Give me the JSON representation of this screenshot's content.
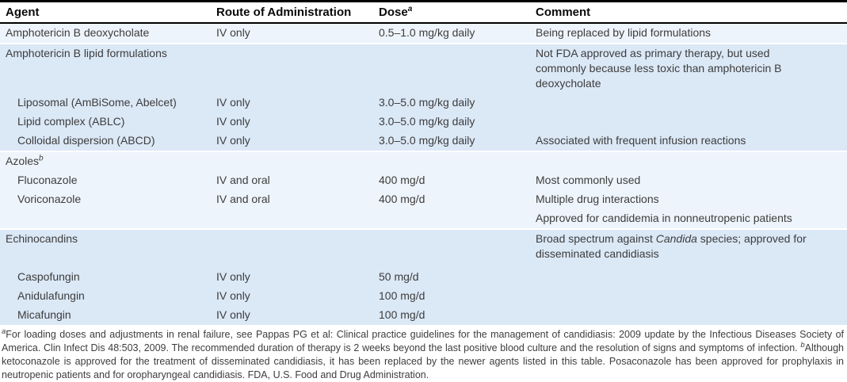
{
  "colors": {
    "band_light": "#eef4fb",
    "band_dark": "#dbe8f6",
    "header_rule": "#000000",
    "body_text": "#3d3d3d"
  },
  "table": {
    "columns": [
      "Agent",
      "Route of Administration",
      "Dose",
      "Comment"
    ],
    "dose_superscript": "a",
    "groups": [
      {
        "rows": [
          {
            "agent": "Amphotericin B deoxycholate",
            "route": "IV only",
            "dose": "0.5–1.0 mg/kg daily",
            "comment": "Being replaced by lipid formulations"
          }
        ]
      },
      {
        "rows": [
          {
            "agent": "Amphotericin B lipid formulations",
            "comment": "Not FDA approved as primary therapy, but used commonly because less toxic than amphotericin B deoxycholate"
          },
          {
            "agent": "Liposomal (AmBiSome, Abelcet)",
            "route": "IV only",
            "dose": "3.0–5.0 mg/kg daily"
          },
          {
            "agent": "Lipid complex (ABLC)",
            "route": "IV only",
            "dose": "3.0–5.0 mg/kg daily"
          },
          {
            "agent": "Colloidal dispersion (ABCD)",
            "route": "IV only",
            "dose": "3.0–5.0 mg/kg daily",
            "comment": "Associated with frequent infusion reactions"
          }
        ]
      },
      {
        "rows": [
          {
            "agent": "Azoles",
            "agent_superscript": "b"
          },
          {
            "agent": "Fluconazole",
            "route": "IV and oral",
            "dose": "400 mg/d",
            "comment": "Most commonly used"
          },
          {
            "agent": "Voriconazole",
            "route": "IV and oral",
            "dose": "400 mg/d",
            "comment": "Multiple drug interactions"
          },
          {
            "comment": "Approved for candidemia in nonneutropenic patients"
          }
        ]
      },
      {
        "rows": [
          {
            "agent": "Echinocandins",
            "comment_pre": "Broad spectrum against ",
            "comment_italic": "Candida",
            "comment_post": " species; approved for disseminated candidiasis"
          },
          {
            "agent": "Caspofungin",
            "route": "IV only",
            "dose": "50 mg/d"
          },
          {
            "agent": "Anidulafungin",
            "route": "IV only",
            "dose": "100 mg/d"
          },
          {
            "agent": "Micafungin",
            "route": "IV only",
            "dose": "100 mg/d"
          }
        ]
      }
    ]
  },
  "footnote": {
    "marker_a": "a",
    "text_a": "For loading doses and adjustments in renal failure, see Pappas PG et al: Clinical practice guidelines for the management of candidiasis: 2009 update by the Infectious Diseases Society of America. Clin Infect Dis 48:503, 2009. The recommended duration of therapy is 2 weeks beyond the last positive blood culture and the resolution of signs and symptoms of infection. ",
    "marker_b": "b",
    "text_b": "Although ketoconazole is approved for the treatment of disseminated candidiasis, it has been replaced by the newer agents listed in this table. Posaconazole has been approved for prophylaxis in neutropenic patients and for oropharyngeal candidiasis. FDA, U.S. Food and Drug Administration."
  }
}
